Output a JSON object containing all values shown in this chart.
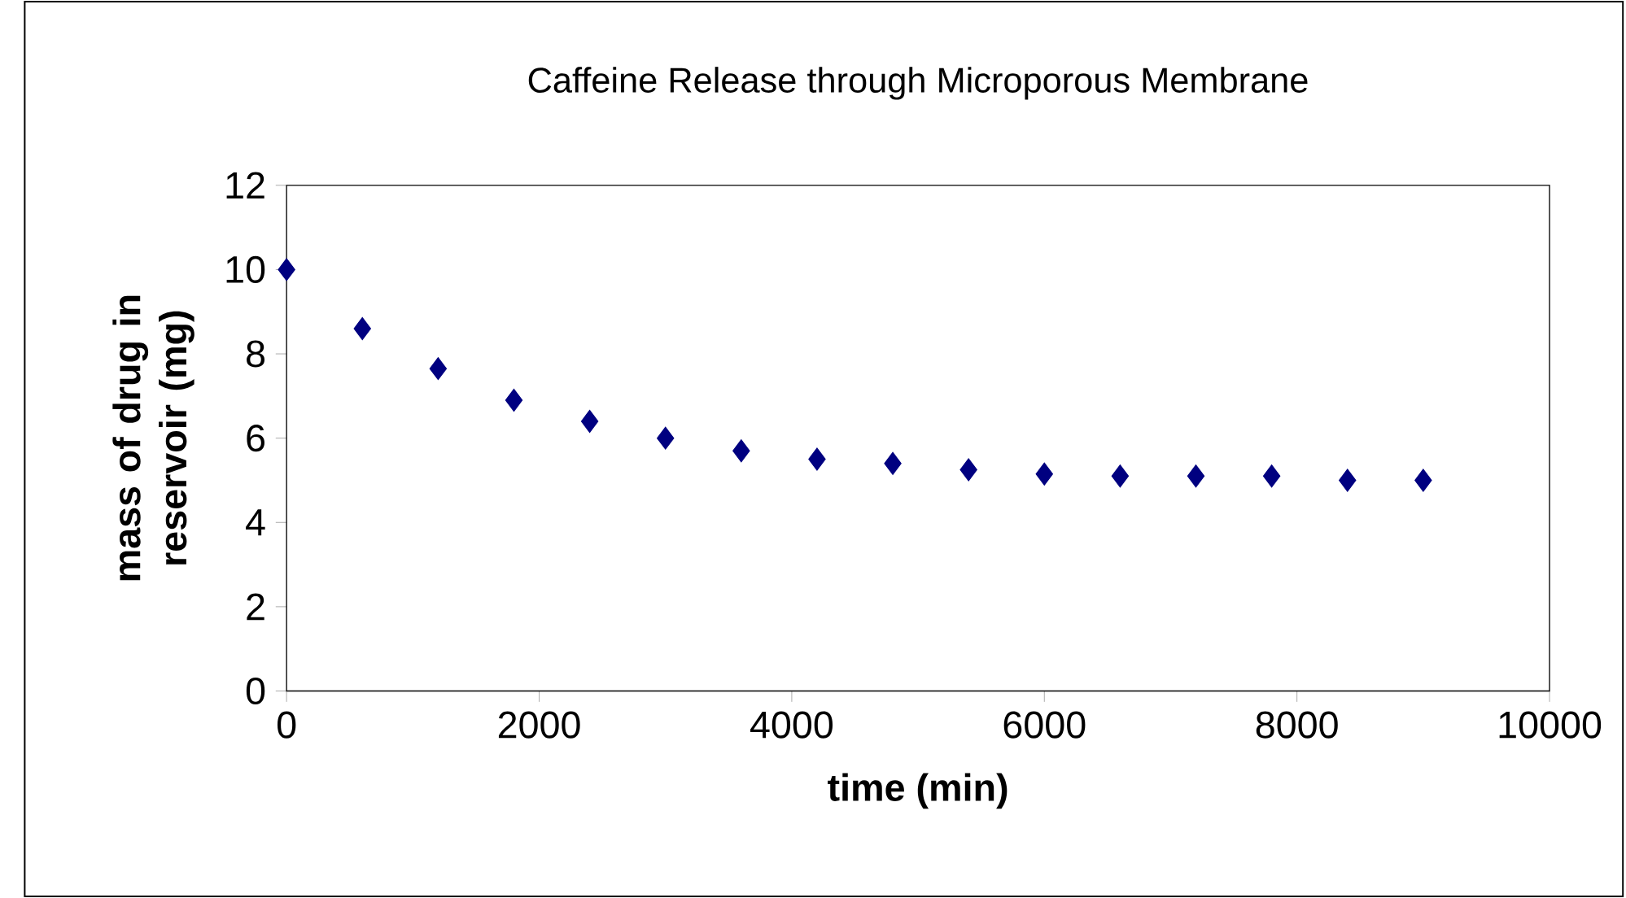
{
  "chart_data": {
    "type": "scatter",
    "title": "Caffeine Release through Microporous Membrane",
    "xlabel": "time (min)",
    "ylabel": "mass of drug in reservoir (mg)",
    "x": [
      0,
      600,
      1200,
      1800,
      2400,
      3000,
      3600,
      4200,
      4800,
      5400,
      6000,
      6600,
      7200,
      7800,
      8400,
      9000
    ],
    "values": [
      10,
      8.6,
      7.65,
      6.9,
      6.4,
      6.0,
      5.7,
      5.5,
      5.4,
      5.25,
      5.15,
      5.1,
      5.1,
      5.1,
      5.0,
      5.0
    ],
    "color": "#000080",
    "marker": "diamond",
    "xlim": [
      0,
      10000
    ],
    "xticks": [
      0,
      2000,
      4000,
      6000,
      8000,
      10000
    ],
    "ylim": [
      0,
      12
    ],
    "yticks": [
      0,
      2,
      4,
      6,
      8,
      10,
      12
    ]
  }
}
